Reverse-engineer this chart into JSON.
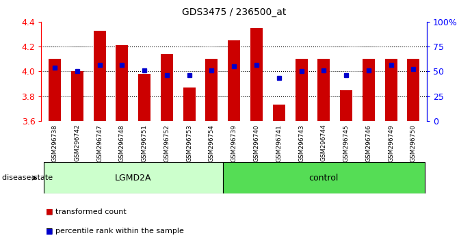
{
  "title": "GDS3475 / 236500_at",
  "samples": [
    "GSM296738",
    "GSM296742",
    "GSM296747",
    "GSM296748",
    "GSM296751",
    "GSM296752",
    "GSM296753",
    "GSM296754",
    "GSM296739",
    "GSM296740",
    "GSM296741",
    "GSM296743",
    "GSM296744",
    "GSM296745",
    "GSM296746",
    "GSM296749",
    "GSM296750"
  ],
  "bar_values": [
    4.1,
    4.0,
    4.33,
    4.21,
    3.98,
    4.14,
    3.87,
    4.1,
    4.25,
    4.35,
    3.73,
    4.1,
    4.1,
    3.85,
    4.1,
    4.1,
    4.1
  ],
  "dot_values": [
    4.03,
    4.0,
    4.05,
    4.05,
    4.01,
    3.97,
    3.97,
    4.01,
    4.04,
    4.05,
    3.95,
    4.0,
    4.01,
    3.97,
    4.01,
    4.05,
    4.02
  ],
  "ylim": [
    3.6,
    4.4
  ],
  "y2lim": [
    0,
    100
  ],
  "bar_color": "#cc0000",
  "dot_color": "#0000cc",
  "bar_bottom": 3.6,
  "dotted_lines": [
    3.8,
    4.0,
    4.2
  ],
  "yticks": [
    3.6,
    3.8,
    4.0,
    4.2,
    4.4
  ],
  "ytick_labels": [
    "3.6",
    "3.8",
    "4.0",
    "4.2",
    "4.4"
  ],
  "y2_ticks": [
    0,
    25,
    50,
    75,
    100
  ],
  "y2_labels": [
    "0",
    "25",
    "50",
    "75",
    "100%"
  ],
  "group_colors": {
    "LGMD2A": "#ccffcc",
    "control": "#55dd55"
  },
  "lgmd2a_count": 8,
  "control_count": 9,
  "legend_items": [
    "transformed count",
    "percentile rank within the sample"
  ],
  "disease_state_label": "disease state",
  "xtick_bg": "#c8c8c8",
  "group_box_color": "#888888"
}
